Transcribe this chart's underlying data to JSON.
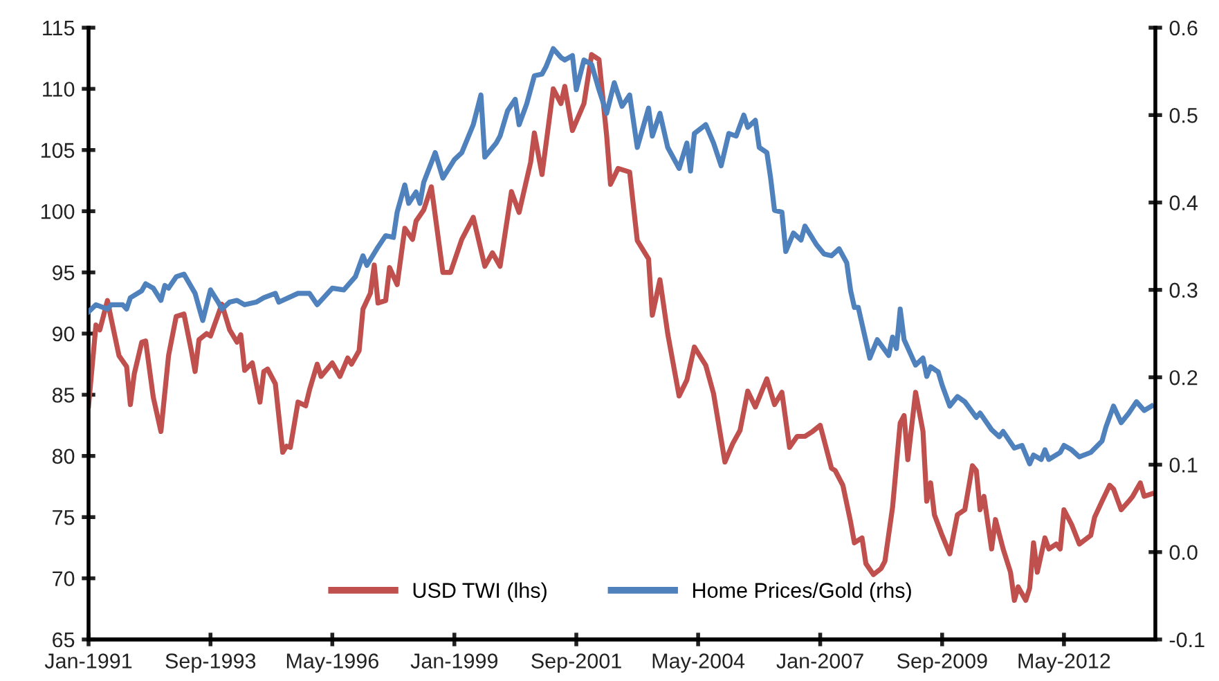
{
  "chart_data": {
    "type": "line",
    "xlim": [
      "1991-01",
      "2014-05"
    ],
    "xticks": [
      {
        "value": "1991-01",
        "label": "Jan-1991"
      },
      {
        "value": "1993-09",
        "label": "Sep-1993"
      },
      {
        "value": "1996-05",
        "label": "May-1996"
      },
      {
        "value": "1999-01",
        "label": "Jan-1999"
      },
      {
        "value": "2001-09",
        "label": "Sep-2001"
      },
      {
        "value": "2004-05",
        "label": "May-2004"
      },
      {
        "value": "2007-01",
        "label": "Jan-2007"
      },
      {
        "value": "2009-09",
        "label": "Sep-2009"
      },
      {
        "value": "2012-05",
        "label": "May-2012"
      }
    ],
    "ylim": [
      65,
      115
    ],
    "yticks": [
      65,
      70,
      75,
      80,
      85,
      90,
      95,
      100,
      105,
      110,
      115
    ],
    "y2lim": [
      -0.1,
      0.6
    ],
    "y2ticks": [
      {
        "value": -0.1,
        "label": "-0.1"
      },
      {
        "value": 0.0,
        "label": "0.0"
      },
      {
        "value": 0.1,
        "label": "0.1"
      },
      {
        "value": 0.2,
        "label": "0.2"
      },
      {
        "value": 0.3,
        "label": "0.3"
      },
      {
        "value": 0.4,
        "label": "0.4"
      },
      {
        "value": 0.5,
        "label": "0.5"
      },
      {
        "value": 0.6,
        "label": "0.6"
      }
    ],
    "grid": false,
    "legend": "bottom",
    "marker": "none",
    "line_style": "solid",
    "series": [
      {
        "name": "USD TWI (lhs)",
        "color": "#c0504d",
        "x": [
          "1991-01",
          "1991-03",
          "1991-04",
          "1991-06",
          "1991-07",
          "1991-09",
          "1991-11",
          "1991-12",
          "1992-01",
          "1992-03",
          "1992-04",
          "1992-06",
          "1992-08",
          "1992-10",
          "1992-12",
          "1993-02",
          "1993-04",
          "1993-05",
          "1993-06",
          "1993-08",
          "1993-09",
          "1993-12",
          "1994-02",
          "1994-04",
          "1994-05",
          "1994-06",
          "1994-08",
          "1994-10",
          "1994-11",
          "1994-12",
          "1995-02",
          "1995-04",
          "1995-05",
          "1995-06",
          "1995-08",
          "1995-10",
          "1995-11",
          "1996-01",
          "1996-02",
          "1996-05",
          "1996-07",
          "1996-09",
          "1996-10",
          "1996-12",
          "1997-01",
          "1997-03",
          "1997-04",
          "1997-05",
          "1997-07",
          "1997-08",
          "1997-10",
          "1997-12",
          "1998-02",
          "1998-03",
          "1998-05",
          "1998-07",
          "1998-10",
          "1998-12",
          "1999-03",
          "1999-06",
          "1999-09",
          "1999-11",
          "2000-01",
          "2000-04",
          "2000-06",
          "2000-09",
          "2000-10",
          "2000-12",
          "2001-03",
          "2001-05",
          "2001-06",
          "2001-08",
          "2001-11",
          "2002-01",
          "2002-03",
          "2002-05",
          "2002-06",
          "2002-08",
          "2002-11",
          "2003-01",
          "2003-04",
          "2003-05",
          "2003-07",
          "2003-09",
          "2003-12",
          "2004-02",
          "2004-04",
          "2004-07",
          "2004-09",
          "2004-12",
          "2005-02",
          "2005-04",
          "2005-06",
          "2005-08",
          "2005-11",
          "2006-01",
          "2006-03",
          "2006-05",
          "2006-07",
          "2006-09",
          "2006-11",
          "2007-01",
          "2007-04",
          "2007-05",
          "2007-07",
          "2007-09",
          "2007-10",
          "2007-12",
          "2008-01",
          "2008-03",
          "2008-05",
          "2008-06",
          "2008-08",
          "2008-10",
          "2008-11",
          "2008-12",
          "2009-02",
          "2009-04",
          "2009-05",
          "2009-06",
          "2009-07",
          "2009-09",
          "2009-11",
          "2010-01",
          "2010-03",
          "2010-05",
          "2010-06",
          "2010-07",
          "2010-08",
          "2010-10",
          "2010-11",
          "2011-01",
          "2011-03",
          "2011-04",
          "2011-05",
          "2011-07",
          "2011-08",
          "2011-09",
          "2011-10",
          "2011-12",
          "2012-01",
          "2012-03",
          "2012-04",
          "2012-05",
          "2012-07",
          "2012-09",
          "2012-12",
          "2013-01",
          "2013-03",
          "2013-05",
          "2013-06",
          "2013-08",
          "2013-10",
          "2013-11",
          "2014-01",
          "2014-02",
          "2014-04"
        ],
        "values": [
          84.1,
          90.7,
          90.3,
          92.7,
          91.2,
          88.2,
          87.3,
          84.2,
          86.7,
          89.3,
          89.4,
          84.8,
          82.0,
          88.2,
          91.4,
          91.6,
          88.6,
          86.9,
          89.5,
          90.0,
          89.8,
          92.4,
          90.3,
          89.3,
          89.9,
          87.0,
          87.6,
          84.4,
          86.9,
          87.1,
          85.9,
          80.3,
          80.8,
          80.7,
          84.4,
          84.1,
          85.4,
          87.5,
          86.5,
          87.6,
          86.5,
          88.0,
          87.5,
          88.6,
          92.0,
          93.3,
          95.6,
          92.5,
          92.7,
          95.4,
          94.0,
          98.6,
          97.7,
          99.2,
          100.1,
          102.0,
          95.0,
          95.0,
          97.7,
          99.5,
          95.5,
          96.6,
          95.5,
          101.6,
          99.9,
          104.0,
          106.4,
          103.0,
          110.0,
          108.8,
          110.2,
          106.6,
          108.8,
          112.8,
          112.4,
          106.2,
          102.2,
          103.5,
          103.2,
          97.6,
          96.1,
          91.5,
          94.4,
          90.0,
          84.9,
          86.2,
          88.9,
          87.4,
          85.1,
          79.5,
          81.0,
          82.1,
          85.3,
          84.0,
          86.3,
          84.2,
          85.2,
          80.7,
          81.6,
          81.6,
          82.0,
          82.5,
          79.0,
          78.8,
          77.6,
          74.6,
          72.9,
          73.3,
          71.2,
          70.3,
          70.8,
          71.4,
          75.8,
          82.7,
          83.3,
          79.7,
          85.2,
          82.0,
          76.3,
          77.8,
          75.2,
          73.5,
          72.0,
          75.2,
          75.6,
          79.2,
          78.8,
          75.6,
          76.7,
          72.4,
          74.8,
          72.4,
          70.5,
          68.2,
          69.3,
          68.2,
          69.2,
          72.9,
          70.5,
          73.3,
          72.4,
          72.8,
          72.4,
          75.6,
          74.4,
          72.8,
          73.5,
          75.0,
          76.3,
          77.6,
          77.3,
          75.6,
          76.3,
          76.7,
          77.8,
          76.7,
          76.9
        ]
      },
      {
        "name": "Home Prices/Gold (rhs)",
        "color": "#4f81bd",
        "axis": "y2",
        "x": [
          "1991-01",
          "1991-03",
          "1991-06",
          "1991-07",
          "1991-10",
          "1991-11",
          "1991-12",
          "1992-03",
          "1992-04",
          "1992-06",
          "1992-08",
          "1992-09",
          "1992-10",
          "1992-12",
          "1993-02",
          "1993-05",
          "1993-06",
          "1993-07",
          "1993-09",
          "1993-11",
          "1993-12",
          "1994-02",
          "1994-04",
          "1994-06",
          "1994-09",
          "1994-11",
          "1995-02",
          "1995-03",
          "1995-08",
          "1995-11",
          "1996-01",
          "1996-05",
          "1996-08",
          "1996-11",
          "1997-01",
          "1997-02",
          "1997-05",
          "1997-07",
          "1997-09",
          "1997-10",
          "1997-12",
          "1998-01",
          "1998-03",
          "1998-04",
          "1998-05",
          "1998-08",
          "1998-10",
          "1999-01",
          "1999-03",
          "1999-06",
          "1999-08",
          "1999-09",
          "1999-12",
          "2000-01",
          "2000-03",
          "2000-05",
          "2000-06",
          "2000-08",
          "2000-10",
          "2000-12",
          "2001-01",
          "2001-03",
          "2001-05",
          "2001-06",
          "2001-08",
          "2001-09",
          "2001-11",
          "2002-01",
          "2002-03",
          "2002-05",
          "2002-07",
          "2002-09",
          "2002-11",
          "2003-01",
          "2003-04",
          "2003-05",
          "2003-07",
          "2003-09",
          "2003-12",
          "2004-02",
          "2004-03",
          "2004-04",
          "2004-07",
          "2004-09",
          "2004-11",
          "2005-01",
          "2005-03",
          "2005-05",
          "2005-06",
          "2005-08",
          "2005-09",
          "2005-11",
          "2005-12",
          "2006-01",
          "2006-03",
          "2006-04",
          "2006-06",
          "2006-08",
          "2006-09",
          "2006-12",
          "2007-02",
          "2007-04",
          "2007-06",
          "2007-08",
          "2007-09",
          "2007-10",
          "2007-11",
          "2008-02",
          "2008-04",
          "2008-07",
          "2008-08",
          "2008-09",
          "2008-10",
          "2008-11",
          "2009-02",
          "2009-04",
          "2009-05",
          "2009-06",
          "2009-08",
          "2009-09",
          "2009-11",
          "2010-01",
          "2010-03",
          "2010-06",
          "2010-07",
          "2010-10",
          "2010-12",
          "2011-01",
          "2011-04",
          "2011-06",
          "2011-08",
          "2011-09",
          "2011-11",
          "2011-12",
          "2012-01",
          "2012-04",
          "2012-05",
          "2012-07",
          "2012-09",
          "2012-12",
          "2013-03",
          "2013-04",
          "2013-06",
          "2013-08",
          "2013-10",
          "2013-12",
          "2014-02",
          "2014-04"
        ],
        "values": [
          0.275,
          0.283,
          0.278,
          0.283,
          0.283,
          0.278,
          0.291,
          0.299,
          0.307,
          0.302,
          0.288,
          0.305,
          0.302,
          0.315,
          0.318,
          0.296,
          0.28,
          0.265,
          0.3,
          0.286,
          0.278,
          0.286,
          0.288,
          0.283,
          0.286,
          0.291,
          0.296,
          0.286,
          0.296,
          0.296,
          0.283,
          0.302,
          0.3,
          0.315,
          0.339,
          0.328,
          0.349,
          0.362,
          0.36,
          0.389,
          0.42,
          0.399,
          0.412,
          0.399,
          0.423,
          0.457,
          0.428,
          0.449,
          0.457,
          0.489,
          0.523,
          0.452,
          0.468,
          0.476,
          0.505,
          0.518,
          0.489,
          0.513,
          0.545,
          0.547,
          0.555,
          0.576,
          0.566,
          0.563,
          0.568,
          0.529,
          0.563,
          0.558,
          0.529,
          0.502,
          0.537,
          0.51,
          0.523,
          0.463,
          0.508,
          0.476,
          0.502,
          0.463,
          0.439,
          0.468,
          0.436,
          0.479,
          0.489,
          0.468,
          0.442,
          0.479,
          0.476,
          0.5,
          0.486,
          0.494,
          0.463,
          0.457,
          0.428,
          0.391,
          0.389,
          0.344,
          0.365,
          0.357,
          0.373,
          0.352,
          0.341,
          0.339,
          0.347,
          0.331,
          0.299,
          0.28,
          0.28,
          0.222,
          0.243,
          0.225,
          0.246,
          0.233,
          0.278,
          0.243,
          0.214,
          0.222,
          0.201,
          0.212,
          0.206,
          0.191,
          0.167,
          0.178,
          0.172,
          0.154,
          0.159,
          0.14,
          0.132,
          0.138,
          0.119,
          0.122,
          0.101,
          0.111,
          0.106,
          0.117,
          0.106,
          0.114,
          0.122,
          0.117,
          0.109,
          0.114,
          0.127,
          0.143,
          0.167,
          0.148,
          0.159,
          0.172,
          0.162,
          0.167
        ]
      }
    ]
  }
}
